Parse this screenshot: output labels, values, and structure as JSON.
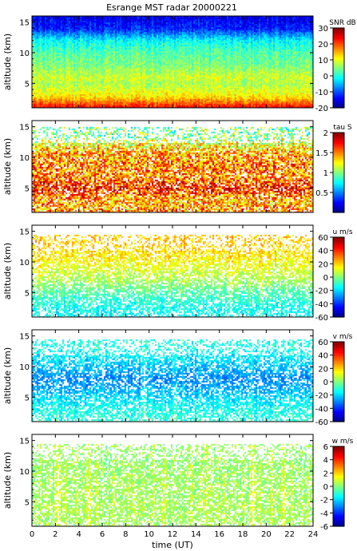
{
  "title": "Esrange MST radar 20000221",
  "chart_data": [
    {
      "type": "heatmap",
      "quantity": "snr",
      "ylabel": "altitude (km)",
      "ylim": [
        1,
        16
      ],
      "yticks": [
        5,
        10,
        15
      ],
      "xlim": [
        0,
        24
      ],
      "xticks": [
        0,
        2,
        4,
        6,
        8,
        10,
        12,
        14,
        16,
        18,
        20,
        22,
        24
      ],
      "show_xticklabels": false,
      "colorbar": {
        "label": "SNR dB",
        "range": [
          -20,
          30
        ],
        "ticks": [
          -20,
          -10,
          0,
          10,
          20,
          30
        ]
      },
      "profile": {
        "altitudes_km": [
          1,
          2,
          3,
          5,
          6,
          7,
          8,
          10,
          12,
          13,
          14,
          16
        ],
        "values": [
          25,
          18,
          12,
          7,
          9,
          7,
          5,
          3,
          -1,
          -6,
          -12,
          -15
        ]
      }
    },
    {
      "type": "heatmap",
      "quantity": "tau",
      "ylabel": "altitude (km)",
      "ylim": [
        1,
        16
      ],
      "yticks": [
        5,
        10,
        15
      ],
      "xlim": [
        0,
        24
      ],
      "xticks": [
        0,
        2,
        4,
        6,
        8,
        10,
        12,
        14,
        16,
        18,
        20,
        22,
        24
      ],
      "show_xticklabels": false,
      "colorbar": {
        "label": "tau S",
        "range": [
          0,
          2
        ],
        "ticks": [
          0.5,
          1,
          1.5,
          2
        ]
      },
      "profile": {
        "altitudes_km": [
          1,
          3,
          5,
          7,
          9,
          11,
          12.5,
          13.5
        ],
        "values": [
          1.5,
          1.4,
          1.7,
          1.5,
          1.5,
          1.4,
          1.2,
          1.0
        ]
      }
    },
    {
      "type": "heatmap",
      "quantity": "u",
      "ylabel": "altitude (km)",
      "ylim": [
        1,
        16
      ],
      "yticks": [
        5,
        10,
        15
      ],
      "xlim": [
        0,
        24
      ],
      "xticks": [
        0,
        2,
        4,
        6,
        8,
        10,
        12,
        14,
        16,
        18,
        20,
        22,
        24
      ],
      "show_xticklabels": false,
      "colorbar": {
        "label": "u m/s",
        "range": [
          -60,
          60
        ],
        "ticks": [
          -60,
          -40,
          -20,
          0,
          20,
          40,
          60
        ]
      },
      "profile": {
        "altitudes_km": [
          1,
          3,
          5,
          7,
          9,
          11,
          13
        ],
        "values": [
          -15,
          -12,
          -5,
          5,
          12,
          18,
          22
        ]
      }
    },
    {
      "type": "heatmap",
      "quantity": "v",
      "ylabel": "altitude (km)",
      "ylim": [
        1,
        16
      ],
      "yticks": [
        5,
        10,
        15
      ],
      "xlim": [
        0,
        24
      ],
      "xticks": [
        0,
        2,
        4,
        6,
        8,
        10,
        12,
        14,
        16,
        18,
        20,
        22,
        24
      ],
      "show_xticklabels": false,
      "colorbar": {
        "label": "v m/s",
        "range": [
          -60,
          60
        ],
        "ticks": [
          -60,
          -40,
          -20,
          0,
          20,
          40,
          60
        ]
      },
      "profile": {
        "altitudes_km": [
          1,
          3,
          5,
          7,
          8,
          9,
          11,
          13
        ],
        "values": [
          -10,
          -12,
          -18,
          -25,
          -28,
          -25,
          -18,
          -12
        ]
      }
    },
    {
      "type": "heatmap",
      "quantity": "w",
      "ylabel": "altitude (km)",
      "ylim": [
        1,
        16
      ],
      "yticks": [
        5,
        10,
        15
      ],
      "xlim": [
        0,
        24
      ],
      "xticks": [
        0,
        2,
        4,
        6,
        8,
        10,
        12,
        14,
        16,
        18,
        20,
        22,
        24
      ],
      "show_xticklabels": true,
      "xlabel": "time (UT)",
      "colorbar": {
        "label": "w m/s",
        "range": [
          -6,
          6
        ],
        "ticks": [
          -6,
          -4,
          -2,
          0,
          2,
          4,
          6
        ]
      },
      "profile": {
        "altitudes_km": [
          1,
          5,
          9,
          13
        ],
        "values": [
          0.5,
          0.6,
          0.5,
          0.4
        ]
      }
    }
  ]
}
